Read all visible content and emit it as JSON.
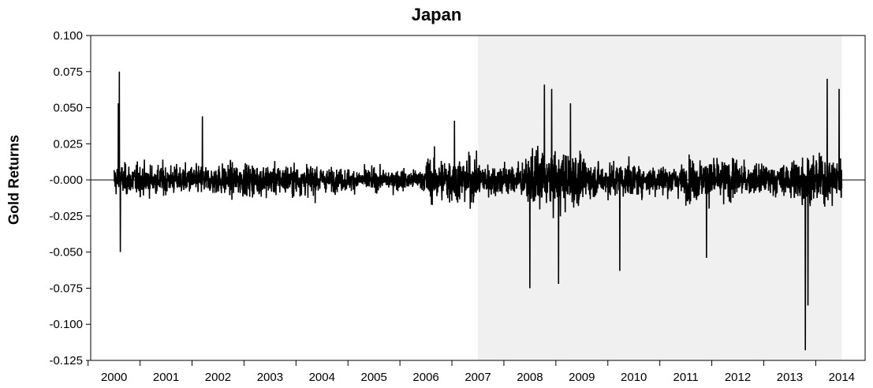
{
  "chart_data": {
    "type": "line",
    "title": "Japan",
    "xlabel": "",
    "ylabel": "Gold Returns",
    "ylim": [
      -0.125,
      0.1
    ],
    "yticks": [
      "0.100",
      "0.075",
      "0.050",
      "0.025",
      "-0.000",
      "-0.025",
      "-0.050",
      "-0.075",
      "-0.100",
      "-0.125"
    ],
    "ytick_values": [
      0.1,
      0.075,
      0.05,
      0.025,
      0.0,
      -0.025,
      -0.05,
      -0.075,
      -0.1,
      -0.125
    ],
    "xticks": [
      "2000",
      "2001",
      "2002",
      "2003",
      "2004",
      "2005",
      "2006",
      "2007",
      "2008",
      "2009",
      "2010",
      "2011",
      "2012",
      "2013",
      "2014"
    ],
    "xlim": [
      1999.55,
      2014.45
    ],
    "data_range": [
      2000.0,
      2014.0
    ],
    "shaded_region": {
      "from": 2007.0,
      "to": 2014.0,
      "color": "#f0f0f0"
    },
    "zero_line": true,
    "grid": false,
    "series": [
      {
        "line_color": "#000000",
        "volatility_by_year": [
          {
            "year": 2000,
            "amplitude": 0.016
          },
          {
            "year": 2001,
            "amplitude": 0.015
          },
          {
            "year": 2002,
            "amplitude": 0.017
          },
          {
            "year": 2003,
            "amplitude": 0.016
          },
          {
            "year": 2004,
            "amplitude": 0.012
          },
          {
            "year": 2005,
            "amplitude": 0.011
          },
          {
            "year": 2006,
            "amplitude": 0.024
          },
          {
            "year": 2007,
            "amplitude": 0.018
          },
          {
            "year": 2008,
            "amplitude": 0.03
          },
          {
            "year": 2009,
            "amplitude": 0.018
          },
          {
            "year": 2010,
            "amplitude": 0.016
          },
          {
            "year": 2011,
            "amplitude": 0.022
          },
          {
            "year": 2012,
            "amplitude": 0.016
          },
          {
            "year": 2013,
            "amplitude": 0.025
          }
        ],
        "notable_points": [
          {
            "x": 2000.1,
            "y": 0.075
          },
          {
            "x": 2000.12,
            "y": -0.05
          },
          {
            "x": 2000.08,
            "y": 0.053
          },
          {
            "x": 2001.7,
            "y": 0.044
          },
          {
            "x": 2006.55,
            "y": 0.041
          },
          {
            "x": 2008.0,
            "y": -0.075
          },
          {
            "x": 2008.28,
            "y": 0.066
          },
          {
            "x": 2008.42,
            "y": 0.063
          },
          {
            "x": 2008.55,
            "y": -0.072
          },
          {
            "x": 2008.78,
            "y": 0.053
          },
          {
            "x": 2009.73,
            "y": -0.063
          },
          {
            "x": 2011.4,
            "y": -0.054
          },
          {
            "x": 2013.3,
            "y": -0.118
          },
          {
            "x": 2013.35,
            "y": -0.087
          },
          {
            "x": 2013.72,
            "y": 0.07
          },
          {
            "x": 2013.95,
            "y": 0.063
          }
        ]
      }
    ]
  }
}
